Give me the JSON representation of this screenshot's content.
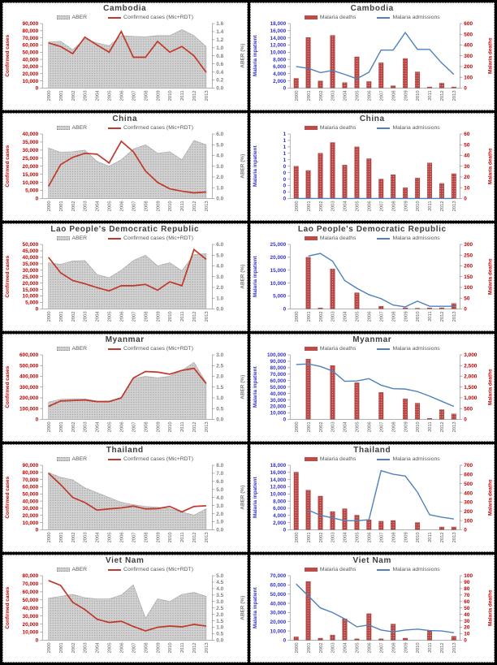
{
  "years": [
    "2000",
    "2001",
    "2002",
    "2003",
    "2004",
    "2005",
    "2006",
    "2007",
    "2008",
    "2009",
    "2010",
    "2011",
    "2012",
    "2013"
  ],
  "colors": {
    "confirmed_line_red": "#C0392B",
    "deaths_bar_red": "#BE4B48",
    "admissions_line_blue": "#4F81BD",
    "axis_red": "#C00000",
    "axis_blue": "#3333CC",
    "axis_gray": "#7F7F7F",
    "aber_area_gray": "#C8C8C8",
    "x_label_gray": "#595959",
    "panel_bg": "#FFFFFF",
    "page_bg": "#000000",
    "title_gray": "#3F3F3F"
  },
  "chart_data": [
    {
      "id": "cambodia-cases",
      "kind": "area-line",
      "type": "area+line",
      "title": "Cambodia",
      "left_axis": {
        "title": "Confirmed cases",
        "min": 0,
        "max": 90000,
        "step": 10000,
        "decimals": 0,
        "color": "#C00000"
      },
      "right_axis": {
        "title": "ABER (%)",
        "min": 0,
        "max": 1.6,
        "step": 0.2,
        "decimals": 1,
        "color": "#7F7F7F"
      },
      "series": [
        {
          "name": "ABER",
          "type": "area",
          "axis": "right",
          "color": "#C8C8C8",
          "values": [
            1.14,
            1.16,
            0.95,
            1.22,
            1.12,
            1.05,
            1.3,
            1.28,
            1.27,
            1.3,
            1.3,
            1.45,
            1.3,
            1.03
          ]
        },
        {
          "name": "Confirmed cases (Mic+RDT)",
          "type": "line",
          "axis": "left",
          "color": "#C0392B",
          "values": [
            63000,
            58000,
            48000,
            71000,
            60000,
            50000,
            79000,
            43000,
            43000,
            65000,
            50000,
            58000,
            45000,
            22000
          ]
        }
      ]
    },
    {
      "id": "cambodia-deaths",
      "kind": "bar-line",
      "type": "bar+line",
      "title": "Cambodia",
      "left_axis": {
        "title": "Malaria inpatient",
        "min": 0,
        "max": 18000,
        "step": 2000,
        "decimals": 0,
        "color": "#3333CC"
      },
      "right_axis": {
        "title": "Malaria deaths",
        "min": 0,
        "max": 600,
        "step": 100,
        "decimals": 0,
        "color": "#C00000"
      },
      "series": [
        {
          "name": "Malaria deaths",
          "type": "bar",
          "axis": "right",
          "color": "#BE4B48",
          "values": [
            90,
            470,
            65,
            490,
            50,
            290,
            60,
            235,
            20,
            275,
            150,
            10,
            45,
            10
          ]
        },
        {
          "name": "Malaria admissions",
          "type": "line",
          "axis": "left",
          "color": "#4F81BD",
          "values": [
            6000,
            5500,
            4300,
            4900,
            3800,
            2600,
            4400,
            10600,
            10600,
            15500,
            10800,
            10800,
            7000,
            3800
          ]
        }
      ]
    },
    {
      "id": "china-cases",
      "kind": "area-line",
      "type": "area+line",
      "title": "China",
      "left_axis": {
        "title": "Confirmed cases",
        "min": 0,
        "max": 40000,
        "step": 5000,
        "decimals": 0,
        "color": "#C00000"
      },
      "right_axis": {
        "title": "ABER (%)",
        "min": 0,
        "max": 6.0,
        "step": 1.0,
        "decimals": 1,
        "color": "#7F7F7F"
      },
      "series": [
        {
          "name": "ABER",
          "type": "area",
          "axis": "right",
          "color": "#C8C8C8",
          "values": [
            4.7,
            4.3,
            4.35,
            4.5,
            3.45,
            3.0,
            3.6,
            4.6,
            5.0,
            4.2,
            4.35,
            3.6,
            5.4,
            5.0
          ]
        },
        {
          "name": "Confirmed cases (Mic+RDT)",
          "type": "line",
          "axis": "left",
          "color": "#C0392B",
          "values": [
            7500,
            21000,
            25500,
            28000,
            27500,
            22000,
            35500,
            29000,
            17000,
            10000,
            6000,
            4500,
            3500,
            4000
          ]
        }
      ]
    },
    {
      "id": "china-deaths",
      "kind": "bar-line",
      "type": "bar+line",
      "title": "China",
      "left_axis": {
        "title": "Malaria inpatient",
        "min": 0,
        "max": 1,
        "step": 0.1,
        "decimals": 0,
        "color": "#3333CC",
        "tick_labels": [
          "1",
          "1",
          "1",
          "1",
          "1",
          "0",
          "0",
          "0",
          "0",
          "0",
          "0"
        ]
      },
      "right_axis": {
        "title": "Malaria deaths",
        "min": 0,
        "max": 60,
        "step": 10,
        "decimals": 0,
        "color": "#C00000"
      },
      "series": [
        {
          "name": "Malaria deaths",
          "type": "bar",
          "axis": "right",
          "color": "#BE4B48",
          "values": [
            30,
            26,
            42,
            52,
            31,
            48,
            37,
            18,
            22,
            10,
            19,
            33,
            14,
            23
          ]
        },
        {
          "name": "Malaria admissions",
          "type": "line",
          "axis": "left",
          "color": "#4F81BD",
          "values": [
            0,
            0,
            0,
            0,
            0,
            0,
            0,
            0,
            0,
            0,
            0,
            0,
            0,
            0
          ]
        }
      ]
    },
    {
      "id": "lao-cases",
      "kind": "area-line",
      "type": "area+line",
      "title": "Lao People's Democratic Republic",
      "left_axis": {
        "title": "Confirmed cases",
        "min": 0,
        "max": 50000,
        "step": 5000,
        "decimals": 0,
        "color": "#C00000"
      },
      "right_axis": {
        "title": "ABER (%)",
        "min": 0,
        "max": 6.0,
        "step": 1.0,
        "decimals": 1,
        "color": "#7F7F7F"
      },
      "series": [
        {
          "name": "ABER",
          "type": "area",
          "axis": "right",
          "color": "#C8C8C8",
          "values": [
            4.3,
            4.15,
            4.45,
            4.5,
            3.2,
            2.9,
            3.6,
            4.5,
            5.0,
            4.0,
            4.3,
            3.55,
            5.05,
            5.15
          ]
        },
        {
          "name": "Confirmed cases (Mic+RDT)",
          "type": "line",
          "axis": "left",
          "color": "#C0392B",
          "values": [
            40000,
            28000,
            22000,
            19500,
            16500,
            14000,
            18000,
            18000,
            19000,
            14500,
            21000,
            18000,
            46000,
            38500
          ]
        }
      ]
    },
    {
      "id": "lao-deaths",
      "kind": "bar-line",
      "type": "bar+line",
      "title": "Lao People's Democratic Republic",
      "left_axis": {
        "title": "Malaria inpatient",
        "min": 0,
        "max": 25000,
        "step": 5000,
        "decimals": 0,
        "color": "#3333CC"
      },
      "right_axis": {
        "title": "Malaria deaths",
        "min": 0,
        "max": 300,
        "step": 50,
        "decimals": 0,
        "color": "#C00000"
      },
      "series": [
        {
          "name": "Malaria deaths",
          "type": "bar",
          "axis": "right",
          "color": "#BE4B48",
          "values": [
            0,
            240,
            4,
            186,
            0,
            75,
            0,
            12,
            0,
            5,
            3,
            4,
            5,
            25
          ]
        },
        {
          "name": "Malaria admissions",
          "type": "line",
          "axis": "left",
          "color": "#4F81BD",
          "values": [
            null,
            20500,
            21500,
            18500,
            11000,
            8000,
            5500,
            4000,
            1500,
            800,
            3000,
            1000,
            1000,
            1000
          ]
        }
      ]
    },
    {
      "id": "myanmar-cases",
      "kind": "area-line",
      "type": "area+line",
      "title": "Myanmar",
      "left_axis": {
        "title": "Confirmed cases",
        "min": 0,
        "max": 600000,
        "step": 100000,
        "decimals": 0,
        "color": "#C00000"
      },
      "right_axis": {
        "title": "ABER (%)",
        "min": 0,
        "max": 3.0,
        "step": 0.5,
        "decimals": 1,
        "color": "#7F7F7F"
      },
      "series": [
        {
          "name": "ABER",
          "type": "area",
          "axis": "right",
          "color": "#C8C8C8",
          "values": [
            0.8,
            0.93,
            0.95,
            0.95,
            0.85,
            0.85,
            1.0,
            1.9,
            2.0,
            1.93,
            2.0,
            2.28,
            2.65,
            1.7
          ]
        },
        {
          "name": "Confirmed cases (Mic+RDT)",
          "type": "line",
          "axis": "left",
          "color": "#C0392B",
          "values": [
            120000,
            170000,
            175000,
            180000,
            165000,
            165000,
            200000,
            385000,
            445000,
            440000,
            420000,
            455000,
            475000,
            333000
          ]
        }
      ]
    },
    {
      "id": "myanmar-deaths",
      "kind": "bar-line",
      "type": "bar+line",
      "title": "Myanmar",
      "left_axis": {
        "title": "Malaria inpatient",
        "min": 0,
        "max": 100000,
        "step": 10000,
        "decimals": 0,
        "color": "#3333CC"
      },
      "right_axis": {
        "title": "Malaria deaths",
        "min": 0,
        "max": 3000,
        "step": 500,
        "decimals": 0,
        "color": "#C00000"
      },
      "series": [
        {
          "name": "Malaria deaths",
          "type": "bar",
          "axis": "right",
          "color": "#BE4B48",
          "values": [
            0,
            2800,
            0,
            2500,
            0,
            1700,
            0,
            1250,
            0,
            950,
            750,
            45,
            450,
            250
          ]
        },
        {
          "name": "Malaria admissions",
          "type": "line",
          "axis": "left",
          "color": "#4F81BD",
          "values": [
            85000,
            86000,
            82000,
            75000,
            59000,
            59500,
            63000,
            53000,
            47500,
            47000,
            43000,
            36000,
            28000,
            20000
          ]
        }
      ]
    },
    {
      "id": "thailand-cases",
      "kind": "area-line",
      "type": "area+line",
      "title": "Thailand",
      "left_axis": {
        "title": "Confirmed cases",
        "min": 0,
        "max": 90000,
        "step": 10000,
        "decimals": 0,
        "color": "#C00000"
      },
      "right_axis": {
        "title": "ABER (%)",
        "min": 0,
        "max": 8.0,
        "step": 1.0,
        "decimals": 1,
        "color": "#7F7F7F"
      },
      "series": [
        {
          "name": "ABER",
          "type": "area",
          "axis": "right",
          "color": "#C8C8C8",
          "values": [
            7.1,
            6.5,
            6.2,
            5.2,
            4.6,
            4.0,
            3.4,
            3.1,
            2.9,
            2.8,
            2.6,
            2.2,
            1.8,
            2.6
          ]
        },
        {
          "name": "Confirmed cases (Mic+RDT)",
          "type": "line",
          "axis": "left",
          "color": "#C0392B",
          "values": [
            79000,
            63000,
            45000,
            38000,
            27500,
            29000,
            30500,
            33000,
            29000,
            29500,
            32500,
            25000,
            32500,
            33500
          ]
        }
      ]
    },
    {
      "id": "thailand-deaths",
      "kind": "bar-line",
      "type": "bar+line",
      "title": "Thailand",
      "left_axis": {
        "title": "Malaria inpatient",
        "min": 0,
        "max": 18000,
        "step": 2000,
        "decimals": 0,
        "color": "#3333CC"
      },
      "right_axis": {
        "title": "Malaria deaths",
        "min": 0,
        "max": 700,
        "step": 100,
        "decimals": 0,
        "color": "#C00000"
      },
      "series": [
        {
          "name": "Malaria deaths",
          "type": "bar",
          "axis": "right",
          "color": "#BE4B48",
          "values": [
            625,
            430,
            365,
            198,
            228,
            158,
            108,
            92,
            100,
            0,
            78,
            0,
            30,
            30
          ]
        },
        {
          "name": "Malaria admissions",
          "type": "line",
          "axis": "left",
          "color": "#4F81BD",
          "values": [
            null,
            5500,
            4000,
            3300,
            2500,
            2500,
            2800,
            16500,
            15500,
            15000,
            10500,
            4200,
            3500,
            3000
          ]
        }
      ]
    },
    {
      "id": "vietnam-cases",
      "kind": "area-line",
      "type": "area+line",
      "title": "Viet Nam",
      "left_axis": {
        "title": "Confirmed cases",
        "min": 0,
        "max": 80000,
        "step": 10000,
        "decimals": 0,
        "color": "#C00000"
      },
      "right_axis": {
        "title": "ABER (%)",
        "min": 0,
        "max": 5.0,
        "step": 0.5,
        "decimals": 1,
        "color": "#7F7F7F"
      },
      "series": [
        {
          "name": "ABER",
          "type": "area",
          "axis": "right",
          "color": "#C8C8C8",
          "values": [
            3.25,
            3.4,
            3.55,
            3.3,
            3.2,
            3.2,
            3.5,
            4.3,
            1.7,
            3.2,
            3.0,
            3.55,
            3.7,
            3.4
          ]
        },
        {
          "name": "Confirmed cases (Mic+RDT)",
          "type": "line",
          "axis": "left",
          "color": "#C0392B",
          "values": [
            74000,
            68000,
            47000,
            38000,
            26000,
            22000,
            23500,
            17000,
            11500,
            16000,
            17500,
            16500,
            19500,
            17500
          ]
        }
      ]
    },
    {
      "id": "vietnam-deaths",
      "kind": "bar-line",
      "type": "bar+line",
      "title": "Viet Nam",
      "left_axis": {
        "title": "Malaria inpatient",
        "min": 0,
        "max": 70000,
        "step": 10000,
        "decimals": 0,
        "color": "#3333CC"
      },
      "right_axis": {
        "title": "Malaria deaths",
        "min": 0,
        "max": 100,
        "step": 10,
        "decimals": 0,
        "color": "#C00000"
      },
      "series": [
        {
          "name": "Malaria deaths",
          "type": "bar",
          "axis": "right",
          "color": "#BE4B48",
          "values": [
            5,
            91,
            3,
            8,
            33,
            2,
            41,
            2,
            25,
            3,
            0,
            14,
            0,
            6
          ]
        },
        {
          "name": "Malaria admissions",
          "type": "line",
          "axis": "left",
          "color": "#4F81BD",
          "values": [
            61000,
            48000,
            35000,
            30000,
            23000,
            14500,
            16500,
            11000,
            9000,
            11000,
            12000,
            10500,
            10000,
            8000
          ]
        }
      ]
    }
  ]
}
